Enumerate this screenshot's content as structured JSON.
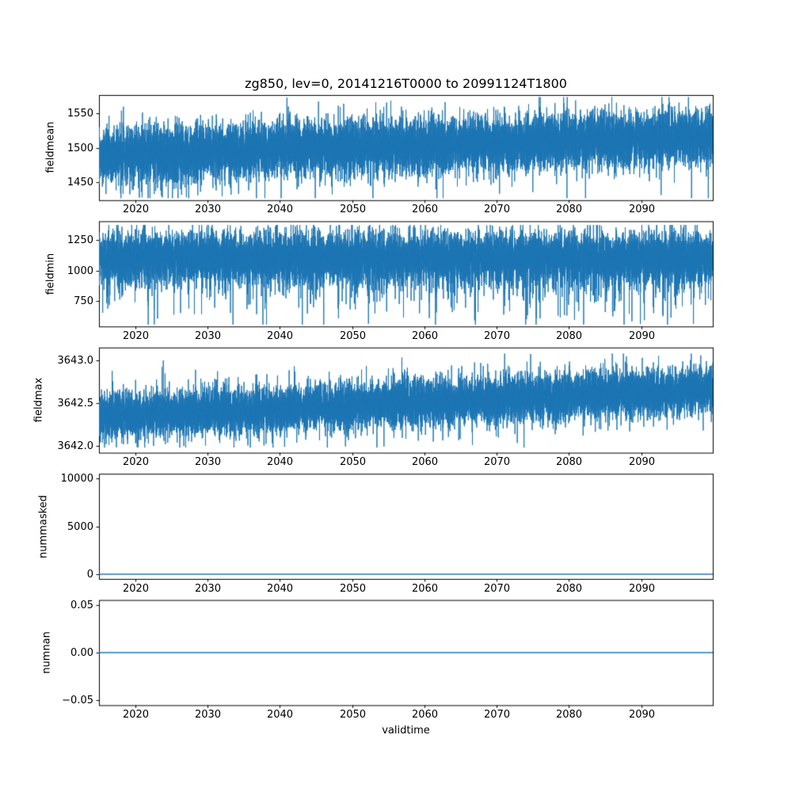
{
  "chart_data": {
    "type": "line",
    "title": "zg850, lev=0, 20141216T0000 to 20991124T1800",
    "xlabel": "validtime",
    "x_range": [
      2014.96,
      2099.9
    ],
    "x_ticks": {
      "values": [
        2020,
        2030,
        2040,
        2050,
        2060,
        2070,
        2080,
        2090
      ],
      "labels": [
        "2020",
        "2030",
        "2040",
        "2050",
        "2060",
        "2070",
        "2080",
        "2090"
      ]
    },
    "line_color": "#1f77b4",
    "axis_color": "#000000",
    "text_color": "#000000",
    "background": "#ffffff",
    "legend": "none",
    "grid": false,
    "subplots": [
      {
        "ylabel": "fieldmean",
        "ylim": [
          1424,
          1577
        ],
        "yticks": {
          "values": [
            1450,
            1500,
            1550
          ],
          "labels": [
            "1450",
            "1500",
            "1550"
          ]
        },
        "series": {
          "kind": "noisy",
          "base_start": 1491,
          "base_end": 1517,
          "noise_std": 20,
          "spike_prob": 0.015,
          "spike_scale": 35,
          "spike_sign": -1,
          "clip": [
            1427,
            1574
          ],
          "points": 12000,
          "seed": 101
        }
      },
      {
        "ylabel": "fieldmin",
        "ylim": [
          545,
          1400
        ],
        "yticks": {
          "values": [
            750,
            1000,
            1250
          ],
          "labels": [
            "750",
            "1000",
            "1250"
          ]
        },
        "series": {
          "kind": "noisy",
          "base_start": 1105,
          "base_end": 1105,
          "noise_std": 105,
          "spike_prob": 0.03,
          "spike_scale": 220,
          "spike_sign": -1,
          "clip": [
            560,
            1370
          ],
          "points": 12000,
          "seed": 202
        }
      },
      {
        "ylabel": "fieldmax",
        "ylim": [
          3641.92,
          3643.15
        ],
        "yticks": {
          "values": [
            3642.0,
            3642.5,
            3643.0
          ],
          "labels": [
            "3642.0",
            "3642.5",
            "3643.0"
          ]
        },
        "series": {
          "kind": "noisy",
          "base_start": 3642.34,
          "base_end": 3642.66,
          "noise_std": 0.135,
          "spike_prob": 0.02,
          "spike_scale": 0.18,
          "spike_sign": 0,
          "clip": [
            3641.98,
            3643.08
          ],
          "points": 12000,
          "seed": 303
        }
      },
      {
        "ylabel": "nummasked",
        "ylim": [
          -500,
          10500
        ],
        "yticks": {
          "values": [
            0,
            5000,
            10000
          ],
          "labels": [
            "0",
            "5000",
            "10000"
          ]
        },
        "series": {
          "kind": "constant",
          "value": 0
        }
      },
      {
        "ylabel": "numnan",
        "ylim": [
          -0.055,
          0.055
        ],
        "yticks": {
          "values": [
            0.05,
            0.0,
            -0.05
          ],
          "labels": [
            "0.05",
            "0.00",
            "−0.05"
          ]
        },
        "series": {
          "kind": "constant",
          "value": 0
        }
      }
    ]
  }
}
